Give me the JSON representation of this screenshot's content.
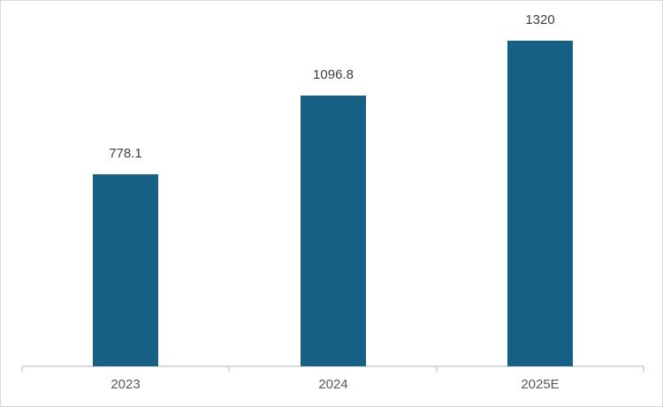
{
  "chart_data": {
    "type": "bar",
    "categories": [
      "2023",
      "2024",
      "2025E"
    ],
    "values": [
      778.1,
      1096.8,
      1320
    ],
    "data_labels": [
      "778.1",
      "1096.8",
      "1320"
    ],
    "title": "",
    "xlabel": "",
    "ylabel": "",
    "ylim": [
      0,
      1480
    ],
    "grid": false,
    "legend": "none",
    "bar_color": "#166085",
    "axis_line_color": "#d9d9d9",
    "data_label_color": "#404040",
    "axis_label_color": "#595959",
    "background_color": "#ffffff",
    "frame_border_color": "#d9d9d9"
  }
}
